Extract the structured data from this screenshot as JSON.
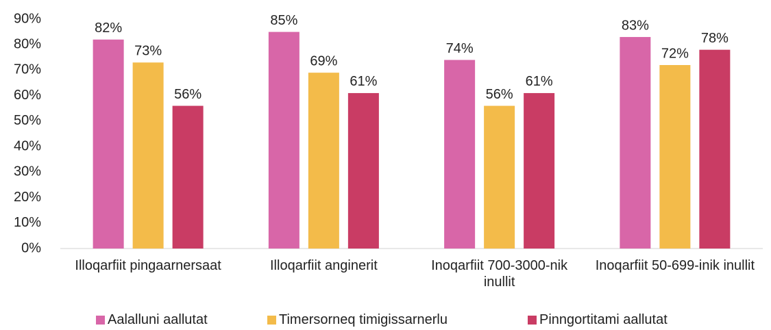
{
  "chart_data": {
    "type": "bar",
    "categories": [
      "Illoqarfiit pingaarnersaat",
      "Illoqarfiit anginerit",
      "Inoqarfiit 700-3000-nik inullit",
      "Inoqarfiit 50-699-inik inullit"
    ],
    "series": [
      {
        "name": "Aalalluni aallutat",
        "color": "#d866a8",
        "values": [
          82,
          85,
          74,
          83
        ],
        "value_labels": [
          "82%",
          "85%",
          "74%",
          "83%"
        ]
      },
      {
        "name": "Timersorneq timigissarnerlu",
        "color": "#f3bb4a",
        "values": [
          73,
          69,
          56,
          72
        ],
        "value_labels": [
          "73%",
          "69%",
          "56%",
          "72%"
        ]
      },
      {
        "name": "Pinngortitami aallutat",
        "color": "#c93c64",
        "values": [
          56,
          61,
          61,
          78
        ],
        "value_labels": [
          "56%",
          "61%",
          "61%",
          "78%"
        ]
      }
    ],
    "ylim": [
      0,
      90
    ],
    "yticks": [
      {
        "value": 0,
        "label": "0%"
      },
      {
        "value": 10,
        "label": "10%"
      },
      {
        "value": 20,
        "label": "20%"
      },
      {
        "value": 30,
        "label": "30%"
      },
      {
        "value": 40,
        "label": "40%"
      },
      {
        "value": 50,
        "label": "50%"
      },
      {
        "value": 60,
        "label": "60%"
      },
      {
        "value": 70,
        "label": "70%"
      },
      {
        "value": 80,
        "label": "80%"
      },
      {
        "value": 90,
        "label": "90%"
      }
    ],
    "legend": "bottom"
  }
}
